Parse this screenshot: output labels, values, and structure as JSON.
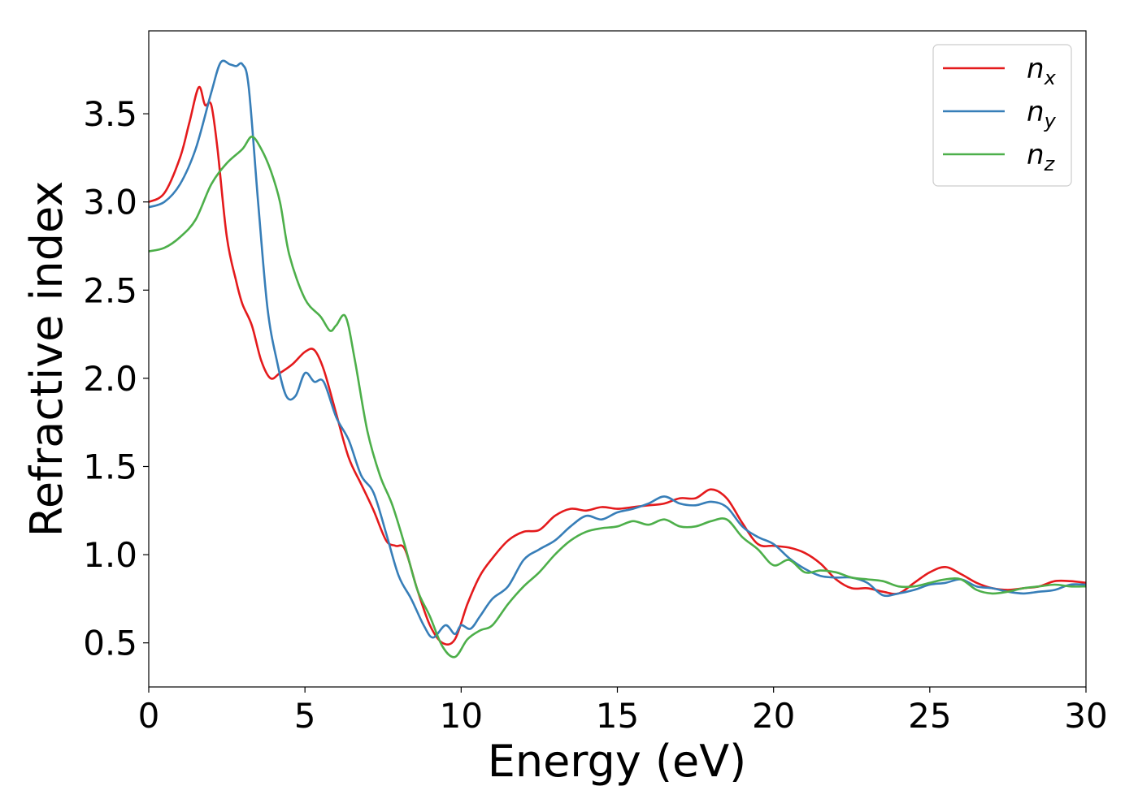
{
  "chart_data": {
    "type": "line",
    "title": "",
    "xlabel": "Energy (eV)",
    "ylabel": "Refractive index",
    "xlim": [
      0,
      30
    ],
    "ylim": [
      0.25,
      3.97
    ],
    "xticks": [
      0,
      5,
      10,
      15,
      20,
      25,
      30
    ],
    "xtick_labels": [
      "0",
      "5",
      "10",
      "15",
      "20",
      "25",
      "30"
    ],
    "yticks": [
      0.5,
      1.0,
      1.5,
      2.0,
      2.5,
      3.0,
      3.5
    ],
    "ytick_labels": [
      "0.5",
      "1.0",
      "1.5",
      "2.0",
      "2.5",
      "3.0",
      "3.5"
    ],
    "grid": false,
    "legend_position": "top-right",
    "series": [
      {
        "name": "n",
        "subscript": "x",
        "color": "#e41a1c",
        "x": [
          0,
          0.5,
          1.0,
          1.3,
          1.6,
          1.8,
          2.0,
          2.2,
          2.5,
          2.8,
          3.0,
          3.3,
          3.6,
          3.9,
          4.2,
          4.6,
          5.0,
          5.3,
          5.6,
          6.0,
          6.4,
          6.8,
          7.2,
          7.6,
          7.9,
          8.2,
          8.6,
          9.0,
          9.4,
          9.8,
          10.2,
          10.6,
          11.0,
          11.5,
          12.0,
          12.5,
          13.0,
          13.5,
          14.0,
          14.5,
          15.0,
          15.5,
          16.0,
          16.5,
          17.0,
          17.5,
          18.0,
          18.5,
          19.0,
          19.5,
          20.0,
          20.5,
          21.0,
          21.5,
          22.0,
          22.5,
          23.0,
          23.5,
          24.0,
          24.5,
          25.0,
          25.5,
          26.0,
          26.5,
          27.0,
          27.5,
          28.0,
          28.5,
          29.0,
          29.5,
          30.0
        ],
        "y": [
          3.0,
          3.05,
          3.25,
          3.45,
          3.65,
          3.55,
          3.55,
          3.3,
          2.8,
          2.55,
          2.42,
          2.3,
          2.1,
          2.0,
          2.03,
          2.08,
          2.15,
          2.16,
          2.05,
          1.8,
          1.55,
          1.4,
          1.25,
          1.08,
          1.05,
          1.03,
          0.8,
          0.6,
          0.5,
          0.52,
          0.72,
          0.88,
          0.98,
          1.08,
          1.13,
          1.14,
          1.22,
          1.26,
          1.25,
          1.27,
          1.26,
          1.27,
          1.28,
          1.29,
          1.32,
          1.32,
          1.37,
          1.32,
          1.18,
          1.06,
          1.05,
          1.04,
          1.01,
          0.95,
          0.86,
          0.81,
          0.81,
          0.79,
          0.78,
          0.84,
          0.9,
          0.93,
          0.89,
          0.84,
          0.81,
          0.8,
          0.81,
          0.82,
          0.85,
          0.85,
          0.84
        ]
      },
      {
        "name": "n",
        "subscript": "y",
        "color": "#377eb8",
        "x": [
          0,
          0.5,
          1.0,
          1.5,
          2.0,
          2.3,
          2.6,
          2.8,
          3.0,
          3.2,
          3.5,
          3.8,
          4.1,
          4.4,
          4.7,
          5.0,
          5.3,
          5.6,
          6.0,
          6.4,
          6.8,
          7.2,
          7.6,
          8.0,
          8.4,
          8.8,
          9.1,
          9.5,
          9.8,
          10.0,
          10.3,
          10.6,
          11.0,
          11.5,
          12.0,
          12.5,
          13.0,
          13.5,
          14.0,
          14.5,
          15.0,
          15.5,
          16.0,
          16.5,
          17.0,
          17.5,
          18.0,
          18.5,
          19.0,
          19.5,
          20.0,
          20.5,
          21.0,
          21.5,
          22.0,
          22.5,
          23.0,
          23.5,
          24.0,
          24.5,
          25.0,
          25.5,
          26.0,
          26.5,
          27.0,
          27.5,
          28.0,
          28.5,
          29.0,
          29.5,
          30.0
        ],
        "y": [
          2.97,
          3.0,
          3.1,
          3.3,
          3.62,
          3.79,
          3.78,
          3.77,
          3.78,
          3.65,
          3.0,
          2.4,
          2.1,
          1.9,
          1.9,
          2.03,
          1.98,
          1.98,
          1.78,
          1.65,
          1.45,
          1.35,
          1.12,
          0.88,
          0.75,
          0.6,
          0.53,
          0.6,
          0.55,
          0.6,
          0.58,
          0.65,
          0.75,
          0.82,
          0.97,
          1.03,
          1.08,
          1.16,
          1.22,
          1.2,
          1.24,
          1.26,
          1.29,
          1.33,
          1.29,
          1.28,
          1.3,
          1.27,
          1.16,
          1.1,
          1.06,
          0.98,
          0.92,
          0.88,
          0.87,
          0.87,
          0.84,
          0.77,
          0.78,
          0.8,
          0.83,
          0.84,
          0.86,
          0.82,
          0.81,
          0.79,
          0.78,
          0.79,
          0.8,
          0.83,
          0.83
        ]
      },
      {
        "name": "n",
        "subscript": "z",
        "color": "#4daf4a",
        "x": [
          0,
          0.5,
          1.0,
          1.5,
          2.0,
          2.5,
          3.0,
          3.3,
          3.6,
          3.9,
          4.2,
          4.5,
          5.0,
          5.5,
          5.8,
          6.0,
          6.3,
          6.6,
          7.0,
          7.4,
          7.8,
          8.2,
          8.6,
          9.0,
          9.4,
          9.8,
          10.2,
          10.6,
          11.0,
          11.5,
          12.0,
          12.5,
          13.0,
          13.5,
          14.0,
          14.5,
          15.0,
          15.5,
          16.0,
          16.5,
          17.0,
          17.5,
          18.0,
          18.5,
          19.0,
          19.5,
          20.0,
          20.5,
          21.0,
          21.5,
          22.0,
          22.5,
          23.0,
          23.5,
          24.0,
          24.5,
          25.0,
          25.5,
          26.0,
          26.5,
          27.0,
          27.5,
          28.0,
          28.5,
          29.0,
          29.5,
          30.0
        ],
        "y": [
          2.72,
          2.74,
          2.8,
          2.9,
          3.1,
          3.22,
          3.3,
          3.37,
          3.3,
          3.18,
          3.0,
          2.7,
          2.45,
          2.35,
          2.27,
          2.3,
          2.35,
          2.1,
          1.7,
          1.45,
          1.28,
          1.05,
          0.8,
          0.65,
          0.48,
          0.42,
          0.52,
          0.57,
          0.6,
          0.72,
          0.82,
          0.9,
          1.0,
          1.08,
          1.13,
          1.15,
          1.16,
          1.19,
          1.17,
          1.2,
          1.16,
          1.16,
          1.19,
          1.2,
          1.1,
          1.03,
          0.94,
          0.97,
          0.9,
          0.91,
          0.9,
          0.87,
          0.86,
          0.85,
          0.82,
          0.82,
          0.84,
          0.86,
          0.86,
          0.8,
          0.78,
          0.79,
          0.81,
          0.82,
          0.83,
          0.82,
          0.82
        ]
      }
    ]
  }
}
